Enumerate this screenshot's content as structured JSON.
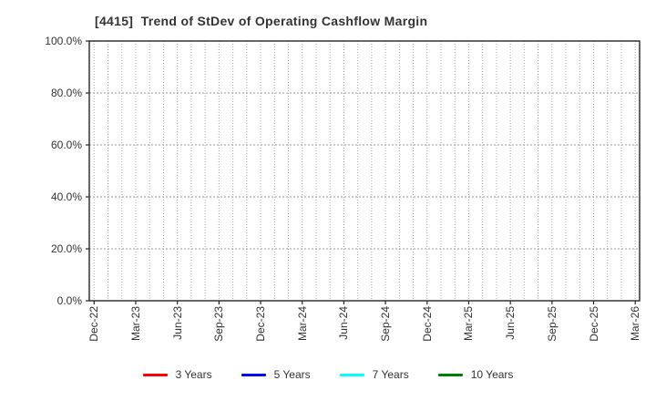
{
  "chart_data": {
    "type": "line",
    "title": "[4415]  Trend of StDev of Operating Cashflow Margin",
    "x_tick_labels": [
      "Dec-22",
      "Mar-23",
      "Jun-23",
      "Sep-23",
      "Dec-23",
      "Mar-24",
      "Jun-24",
      "Sep-24",
      "Dec-24",
      "Mar-25",
      "Jun-25",
      "Sep-25",
      "Dec-25",
      "Mar-26"
    ],
    "x_minor_divisions_per_label": 3,
    "y_tick_labels": [
      "0.0%",
      "20.0%",
      "40.0%",
      "60.0%",
      "80.0%",
      "100.0%"
    ],
    "y_tick_values": [
      0,
      20,
      40,
      60,
      80,
      100
    ],
    "ylim": [
      0,
      100
    ],
    "y_unit": "%",
    "grid": {
      "shown": true,
      "style": "dotted",
      "color": "#aaaaaa"
    },
    "legend_position": "bottom",
    "series": [
      {
        "name": "3 Years",
        "color": "#ff0000",
        "values": []
      },
      {
        "name": "5 Years",
        "color": "#0000ff",
        "values": []
      },
      {
        "name": "7 Years",
        "color": "#00ffff",
        "values": []
      },
      {
        "name": "10 Years",
        "color": "#008000",
        "values": []
      }
    ],
    "axis_color": "#262626",
    "text_color": "#333333"
  }
}
